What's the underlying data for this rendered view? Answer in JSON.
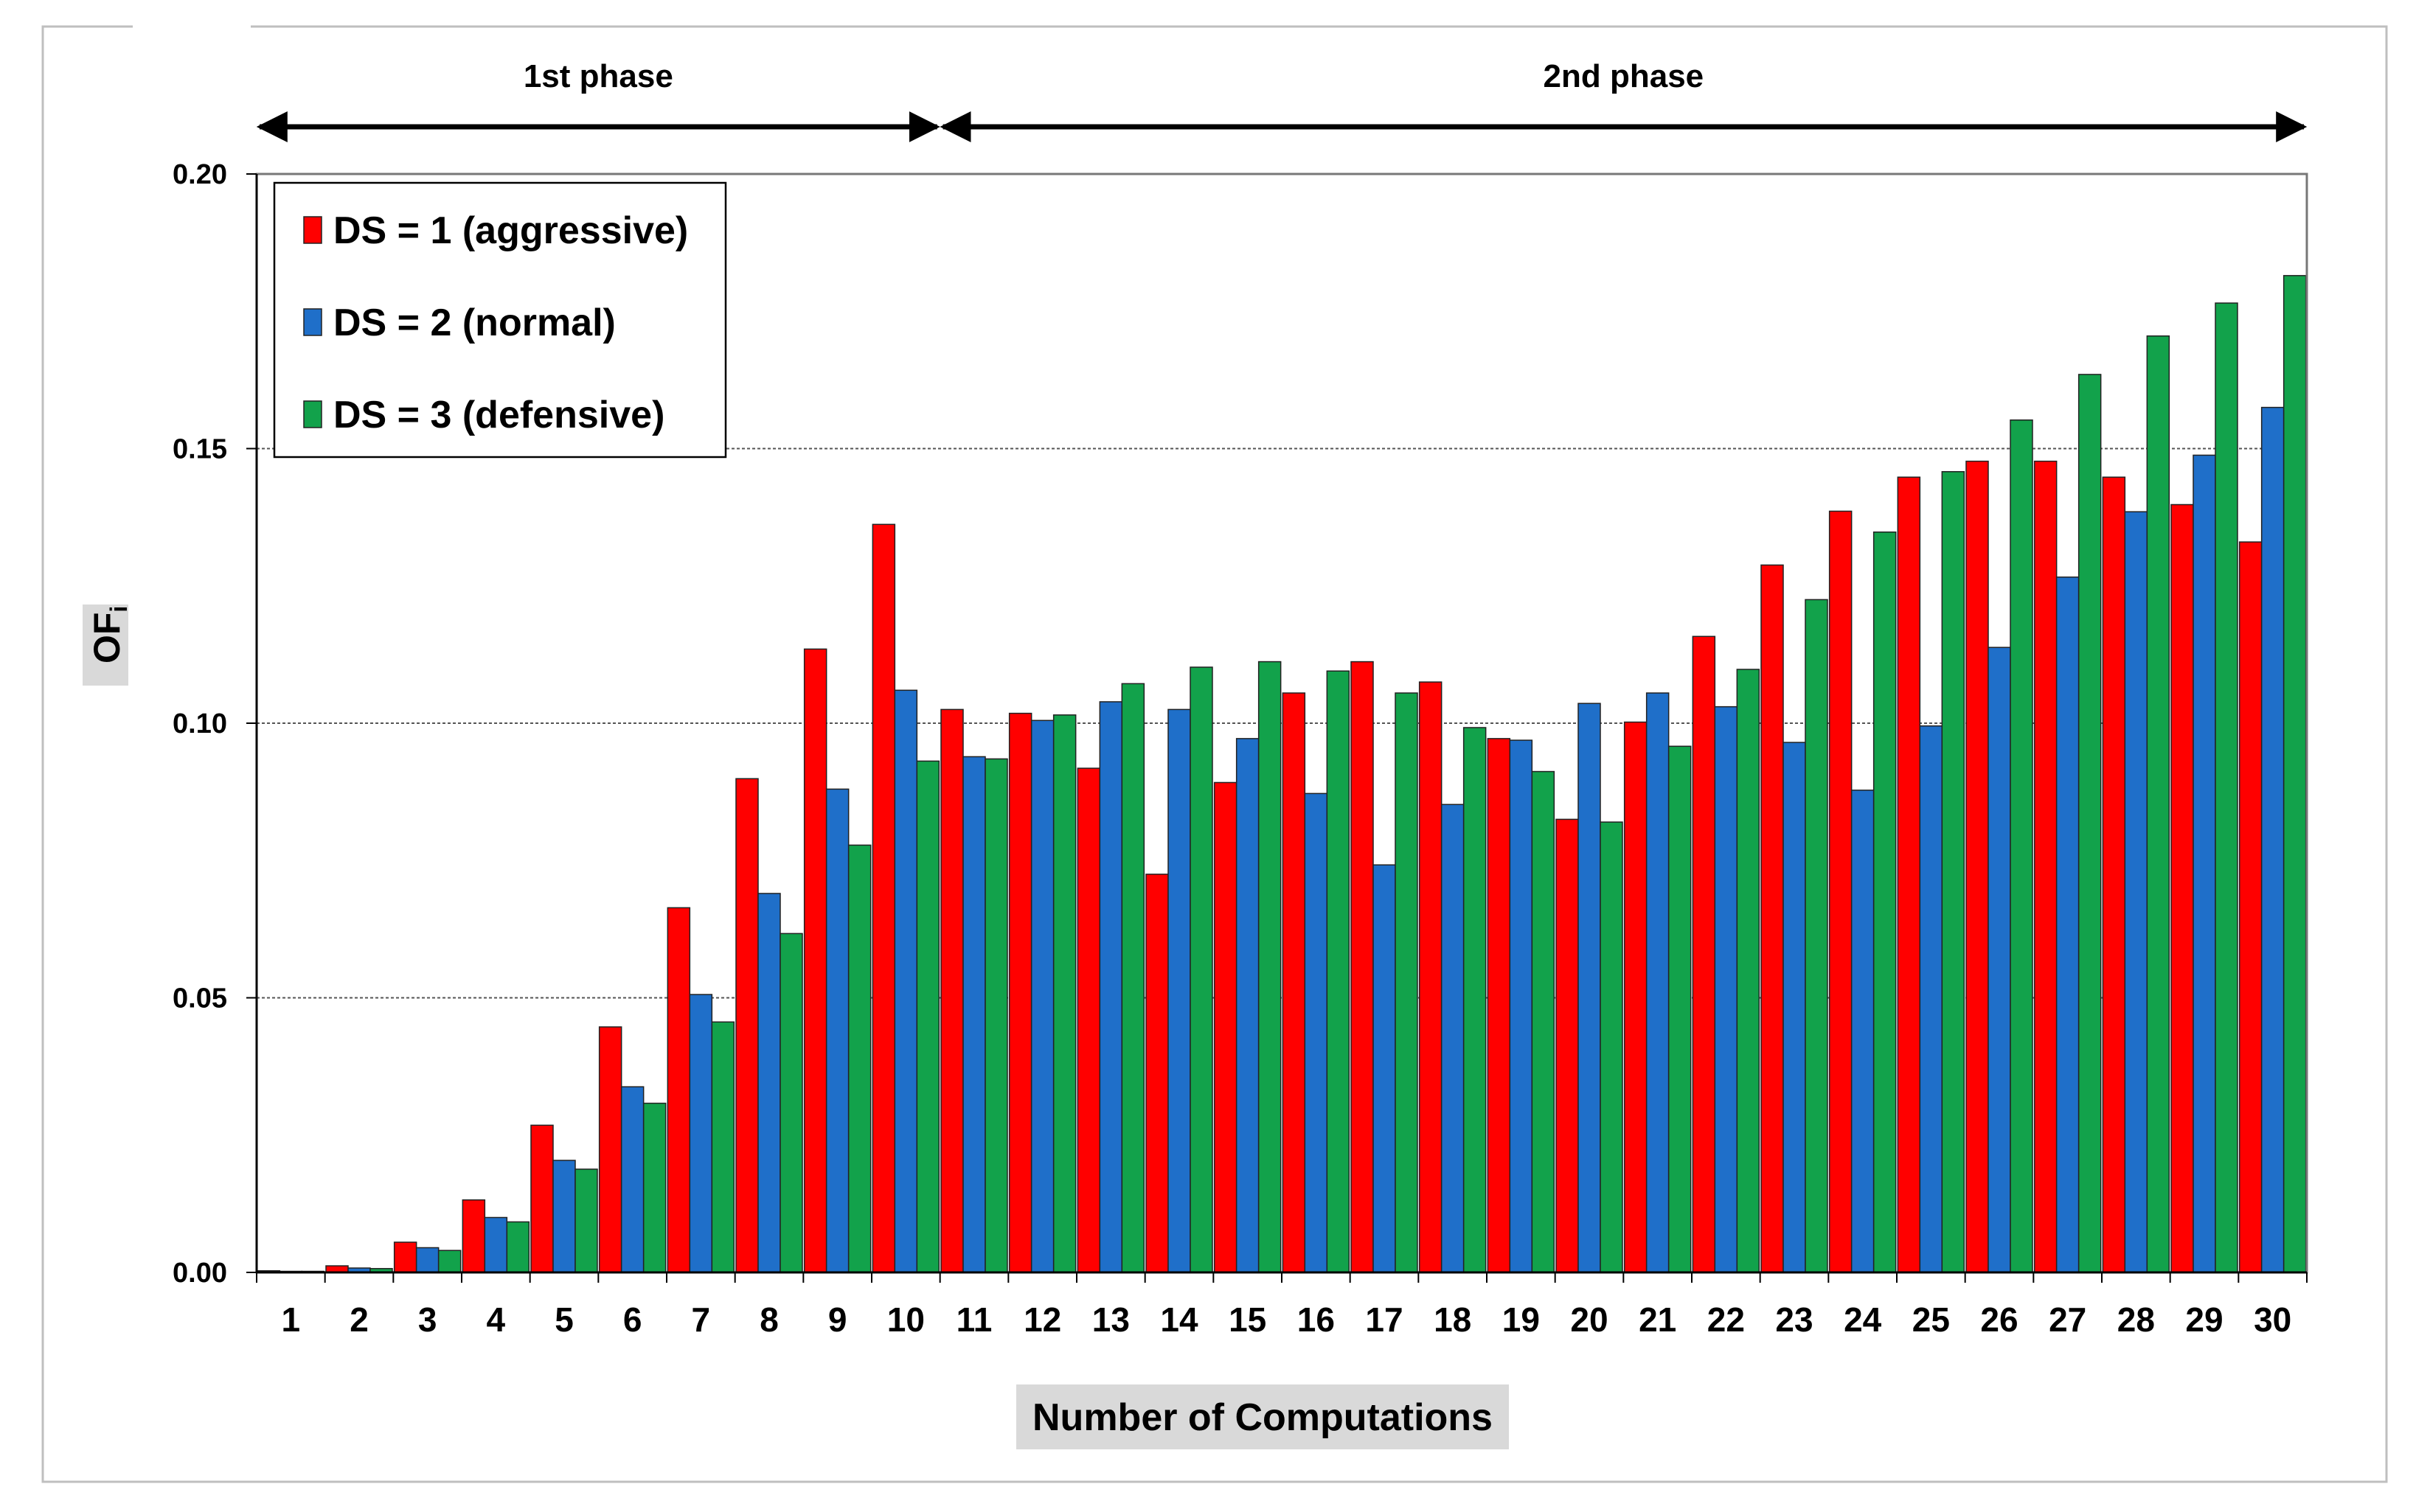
{
  "chart_data": {
    "type": "bar",
    "title": "",
    "xlabel": "Number of Computations",
    "ylabel": "OF",
    "ylabel_subscript": "i",
    "ylim": [
      0,
      0.2
    ],
    "yticks": [
      "0.00",
      "0.05",
      "0.10",
      "0.15",
      "0.20"
    ],
    "grid": true,
    "legend_position": "top-left",
    "categories": [
      "1",
      "2",
      "3",
      "4",
      "5",
      "6",
      "7",
      "8",
      "9",
      "10",
      "11",
      "12",
      "13",
      "14",
      "15",
      "16",
      "17",
      "18",
      "19",
      "20",
      "21",
      "22",
      "23",
      "24",
      "25",
      "26",
      "27",
      "28",
      "29",
      "30"
    ],
    "series": [
      {
        "name": "DS = 1 (aggressive)",
        "color": "#ff0000",
        "values": [
          0.0003,
          0.0012,
          0.0055,
          0.0132,
          0.0268,
          0.0447,
          0.0664,
          0.0899,
          0.1135,
          0.1362,
          0.1025,
          0.1018,
          0.0918,
          0.0725,
          0.0892,
          0.1055,
          0.1112,
          0.1075,
          0.0972,
          0.0825,
          0.1002,
          0.1158,
          0.1288,
          0.1386,
          0.1448,
          0.1477,
          0.1477,
          0.1448,
          0.1398,
          0.133
        ]
      },
      {
        "name": "DS = 2 (normal)",
        "color": "#1f6fc9",
        "values": [
          0.0002,
          0.0008,
          0.0045,
          0.01,
          0.0204,
          0.0338,
          0.0506,
          0.069,
          0.088,
          0.106,
          0.0939,
          0.1005,
          0.1039,
          0.1025,
          0.0972,
          0.0872,
          0.0742,
          0.0852,
          0.0969,
          0.1036,
          0.1055,
          0.103,
          0.0965,
          0.0878,
          0.0995,
          0.1138,
          0.1266,
          0.1385,
          0.1488,
          0.1575
        ]
      },
      {
        "name": "DS = 3 (defensive)",
        "color": "#12a24b",
        "values": [
          0.0002,
          0.0007,
          0.004,
          0.0092,
          0.0188,
          0.0308,
          0.0456,
          0.0617,
          0.0778,
          0.0931,
          0.0935,
          0.1015,
          0.1072,
          0.1102,
          0.1112,
          0.1095,
          0.1055,
          0.0992,
          0.0912,
          0.082,
          0.0958,
          0.1098,
          0.1225,
          0.1348,
          0.1458,
          0.1552,
          0.1635,
          0.1705,
          0.1765,
          0.1815
        ]
      }
    ],
    "annotations": [
      {
        "text": "1st phase",
        "from_category": "1",
        "to_category": "10"
      },
      {
        "text": "2nd phase",
        "from_category": "10",
        "to_category": "30"
      }
    ]
  }
}
